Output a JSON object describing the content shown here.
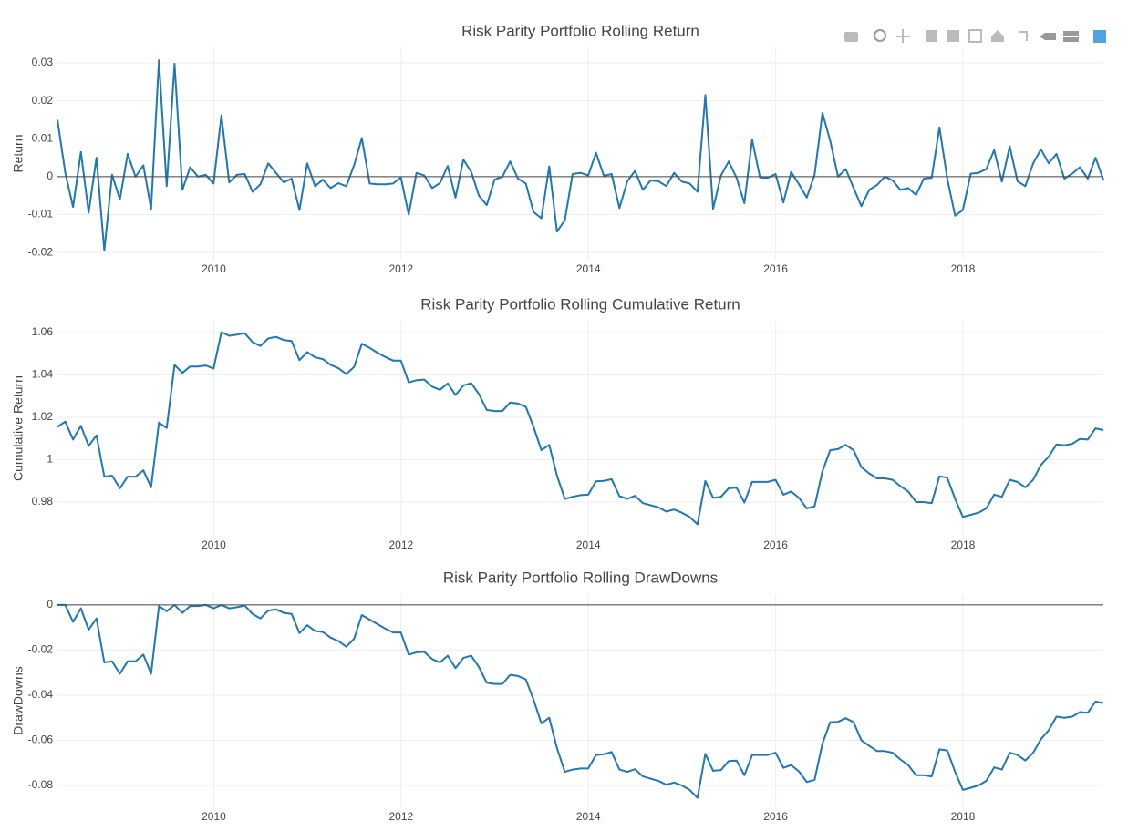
{
  "chart_data": [
    {
      "type": "line",
      "title": "Risk Parity Portfolio Rolling Return",
      "y_label": "Return",
      "xlim": [
        2008.33,
        2019.5
      ],
      "xticks": [
        2010,
        2012,
        2014,
        2016,
        2018
      ],
      "ylim": [
        -0.0219,
        0.0341
      ],
      "yticks": [
        -0.02,
        -0.01,
        0,
        0.01,
        0.02,
        0.03
      ],
      "grid": true,
      "zeroline": true,
      "series": [
        {
          "color": "#1f77b4",
          "values": [
            0.015,
            0.001,
            -0.008,
            0.0065,
            -0.0095,
            0.005,
            -0.0195,
            0.0005,
            -0.006,
            0.006,
            0,
            0.003,
            -0.0085,
            0.0307,
            -0.0025,
            0.0298,
            -0.0035,
            0.0025,
            0,
            0.0005,
            -0.0018,
            0.0162,
            -0.0015,
            0.0005,
            0.0007,
            -0.004,
            -0.002,
            0.0035,
            0.001,
            -0.0015,
            -0.0005,
            -0.0088,
            0.0035,
            -0.0025,
            -0.0008,
            -0.003,
            -0.0017,
            -0.0025,
            0.003,
            0.0102,
            -0.0018,
            -0.002,
            -0.002,
            -0.0018,
            -0.0002,
            -0.01,
            0.001,
            0.0003,
            -0.003,
            -0.0017,
            0.0028,
            -0.0055,
            0.0045,
            0.0013,
            -0.005,
            -0.0075,
            -0.0008,
            0,
            0.004,
            -0.0005,
            -0.0018,
            -0.0093,
            -0.011,
            0.0027,
            -0.0145,
            -0.0115,
            0.0007,
            0.001,
            0.0003,
            0.0063,
            0.0002,
            0.0007,
            -0.0083,
            -0.0012,
            0.0015,
            -0.0035,
            -0.001,
            -0.0012,
            -0.0025,
            0.001,
            -0.0013,
            -0.0018,
            -0.004,
            0.0215,
            -0.0085,
            0.0003,
            0.004,
            -0.0003,
            -0.007,
            0.0098,
            -0.0002,
            -0.0003,
            0.0007,
            -0.0068,
            0.0012,
            -0.002,
            -0.0055,
            0.0005,
            0.0168,
            0.0095,
            0,
            0.002,
            -0.003,
            -0.0078,
            -0.0035,
            -0.0022,
            0,
            -0.001,
            -0.0035,
            -0.003,
            -0.0048,
            -0.0005,
            -0.0003,
            0.013,
            -0.0005,
            -0.0103,
            -0.0088,
            0.0008,
            0.001,
            0.002,
            0.007,
            -0.0013,
            0.008,
            -0.0012,
            -0.0025,
            0.0035,
            0.0072,
            0.0035,
            0.006,
            -0.0005,
            0.0008,
            0.0025,
            -0.0005,
            0.005,
            -0.0008
          ]
        }
      ]
    },
    {
      "type": "line",
      "title": "Risk Parity Portfolio Rolling Cumulative Return",
      "y_label": "Cumulative Return",
      "xlim": [
        2008.33,
        2019.5
      ],
      "xticks": [
        2010,
        2012,
        2014,
        2016,
        2018
      ],
      "ylim": [
        0.9641,
        1.0656
      ],
      "yticks": [
        0.98,
        1,
        1.02,
        1.04,
        1.06
      ],
      "grid": true,
      "zeroline": false,
      "series": [
        {
          "color": "#1f77b4",
          "values": [
            1.0155,
            1.018,
            1.0095,
            1.016,
            1.0065,
            1.0115,
            0.992,
            0.9925,
            0.9865,
            0.992,
            0.992,
            0.995,
            0.987,
            1.0175,
            1.015,
            1.0448,
            1.041,
            1.044,
            1.044,
            1.0445,
            1.043,
            1.0602,
            1.0585,
            1.059,
            1.0597,
            1.0555,
            1.0537,
            1.0572,
            1.058,
            1.0565,
            1.056,
            1.047,
            1.0508,
            1.0483,
            1.0475,
            1.0448,
            1.0432,
            1.0405,
            1.0438,
            1.0547,
            1.0528,
            1.0505,
            1.0485,
            1.0468,
            1.0468,
            1.0365,
            1.0375,
            1.0378,
            1.0345,
            1.033,
            1.036,
            1.0305,
            1.035,
            1.0362,
            1.031,
            1.0235,
            1.023,
            1.023,
            1.027,
            1.0265,
            1.025,
            1.0155,
            1.0045,
            1.007,
            0.9925,
            0.9815,
            0.9825,
            0.9833,
            0.9835,
            0.9898,
            0.99,
            0.9908,
            0.9828,
            0.9815,
            0.983,
            0.9795,
            0.9785,
            0.9775,
            0.9755,
            0.9765,
            0.975,
            0.973,
            0.9695,
            0.99,
            0.982,
            0.9825,
            0.9865,
            0.9868,
            0.9798,
            0.9895,
            0.9895,
            0.9895,
            0.9905,
            0.9835,
            0.985,
            0.982,
            0.977,
            0.978,
            0.9945,
            1.0045,
            1.005,
            1.007,
            1.0045,
            0.9965,
            0.9935,
            0.9912,
            0.9912,
            0.9905,
            0.9875,
            0.985,
            0.98,
            0.98,
            0.9795,
            0.9922,
            0.9915,
            0.9815,
            0.973,
            0.974,
            0.975,
            0.977,
            0.9835,
            0.9825,
            0.9905,
            0.9895,
            0.987,
            0.9905,
            0.9975,
            1.0015,
            1.0072,
            1.0068,
            1.0075,
            1.0098,
            1.0095,
            1.0148,
            1.014
          ]
        }
      ]
    },
    {
      "type": "line",
      "title": "Risk Parity Portfolio Rolling DrawDowns",
      "y_label": "DrawDowns",
      "xlim": [
        2008.33,
        2019.5
      ],
      "xticks": [
        2010,
        2012,
        2014,
        2016,
        2018
      ],
      "ylim": [
        -0.0897,
        0.0048
      ],
      "yticks": [
        -0.08,
        -0.06,
        -0.04,
        -0.02,
        0
      ],
      "grid": true,
      "zeroline": true,
      "series": [
        {
          "color": "#1f77b4",
          "values": [
            0,
            0,
            -0.0075,
            -0.0015,
            -0.011,
            -0.006,
            -0.0255,
            -0.025,
            -0.0305,
            -0.025,
            -0.025,
            -0.022,
            -0.0305,
            -0.0005,
            -0.0028,
            0,
            -0.0035,
            -0.0005,
            -0.0005,
            0,
            -0.0015,
            0,
            -0.0015,
            -0.001,
            -0.0003,
            -0.004,
            -0.006,
            -0.0025,
            -0.002,
            -0.0035,
            -0.004,
            -0.0125,
            -0.009,
            -0.0115,
            -0.012,
            -0.0145,
            -0.016,
            -0.0185,
            -0.015,
            -0.0045,
            -0.0065,
            -0.0085,
            -0.0105,
            -0.0122,
            -0.0122,
            -0.022,
            -0.021,
            -0.0208,
            -0.024,
            -0.0255,
            -0.0225,
            -0.028,
            -0.0235,
            -0.0225,
            -0.0275,
            -0.0345,
            -0.035,
            -0.035,
            -0.031,
            -0.0315,
            -0.033,
            -0.042,
            -0.0525,
            -0.05,
            -0.0635,
            -0.074,
            -0.073,
            -0.0725,
            -0.0725,
            -0.0665,
            -0.0662,
            -0.0652,
            -0.073,
            -0.074,
            -0.0728,
            -0.076,
            -0.077,
            -0.078,
            -0.0797,
            -0.0787,
            -0.08,
            -0.082,
            -0.0855,
            -0.066,
            -0.0735,
            -0.0732,
            -0.0692,
            -0.069,
            -0.0755,
            -0.0665,
            -0.0665,
            -0.0665,
            -0.0655,
            -0.0722,
            -0.071,
            -0.0738,
            -0.0785,
            -0.0775,
            -0.0615,
            -0.052,
            -0.0518,
            -0.0502,
            -0.052,
            -0.06,
            -0.0625,
            -0.0648,
            -0.0648,
            -0.0655,
            -0.0685,
            -0.071,
            -0.0755,
            -0.0755,
            -0.076,
            -0.064,
            -0.0645,
            -0.074,
            -0.082,
            -0.081,
            -0.08,
            -0.078,
            -0.072,
            -0.073,
            -0.0655,
            -0.0665,
            -0.069,
            -0.0655,
            -0.0595,
            -0.0555,
            -0.0495,
            -0.05,
            -0.0495,
            -0.0475,
            -0.0478,
            -0.0428,
            -0.0435
          ]
        }
      ]
    }
  ]
}
